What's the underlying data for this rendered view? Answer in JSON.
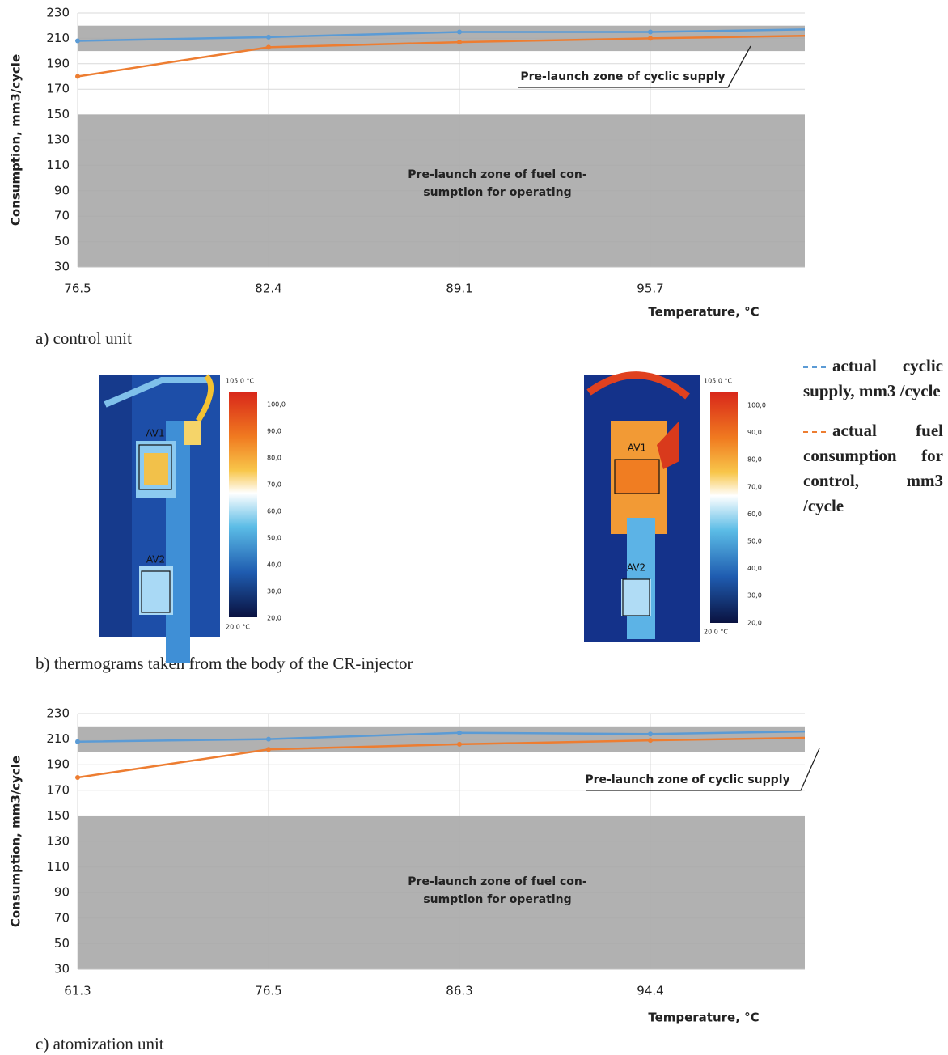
{
  "chart_data": [
    {
      "type": "line",
      "xlabel": "Temperature, °C",
      "ylabel": "Consumption, mm3/cycle",
      "categories": [
        "76.5",
        "82.4",
        "89.1",
        "95.7",
        null
      ],
      "series": [
        {
          "name": "actual cyclic supply, mm3 /cycle",
          "color": "#5b9bd5",
          "values": [
            208,
            211,
            215,
            215,
            217
          ]
        },
        {
          "name": "actual fuel consumption for control, mm3 /cycle",
          "color": "#ed7d31",
          "values": [
            180,
            203,
            207,
            210,
            212
          ]
        }
      ],
      "ylim": [
        30,
        230
      ],
      "yticks": [
        30,
        50,
        70,
        90,
        110,
        130,
        150,
        170,
        190,
        210,
        230
      ],
      "grid": true,
      "bands": [
        {
          "from": 30,
          "to": 150,
          "color": "#a9a9a9",
          "label_lines": [
            "Pre-launch zone of fuel con-",
            "sumption for operating"
          ]
        },
        {
          "from": 200,
          "to": 220,
          "color": "#a9a9a9",
          "label_lines": [
            "Pre-launch zone of cyclic supply"
          ]
        }
      ]
    },
    {
      "type": "line",
      "xlabel": "Temperature, °C",
      "ylabel": "Consumption, mm3/cycle",
      "categories": [
        "61.3",
        "76.5",
        "86.3",
        "94.4",
        null
      ],
      "series": [
        {
          "color": "#5b9bd5",
          "values": [
            208,
            210,
            215,
            214,
            216
          ]
        },
        {
          "color": "#ed7d31",
          "values": [
            180,
            202,
            206,
            209,
            211
          ]
        }
      ],
      "ylim": [
        30,
        230
      ],
      "yticks": [
        30,
        50,
        70,
        90,
        110,
        130,
        150,
        170,
        190,
        210,
        230
      ],
      "grid": true,
      "bands": [
        {
          "from": 30,
          "to": 150,
          "color": "#a9a9a9",
          "label_lines": [
            "Pre-launch zone of fuel con-",
            "sumption for operating"
          ]
        },
        {
          "from": 200,
          "to": 220,
          "color": "#a9a9a9",
          "label_lines": [
            "Pre-launch zone of cyclic supply"
          ]
        }
      ]
    }
  ],
  "captions": [
    "a) control unit",
    "b) thermograms taken from the body of the CR-injector",
    "c) atomization unit"
  ],
  "thermograms": [
    {
      "boxes": [
        "AV1",
        "AV2"
      ],
      "scale_max": "105.0 °C",
      "scale_min": "20.0 °C",
      "scale_ticks": [
        "100,0",
        "90,0",
        "80,0",
        "70,0",
        "60,0",
        "50,0",
        "40,0",
        "30,0",
        "20,0"
      ]
    },
    {
      "boxes": [
        "AV1",
        "AV2"
      ],
      "scale_max": "105.0 °C",
      "scale_min": "20.0 °C",
      "scale_ticks": [
        "100,0",
        "90,0",
        "80,0",
        "70,0",
        "60,0",
        "50,0",
        "40,0",
        "30,0",
        "20,0"
      ]
    }
  ]
}
